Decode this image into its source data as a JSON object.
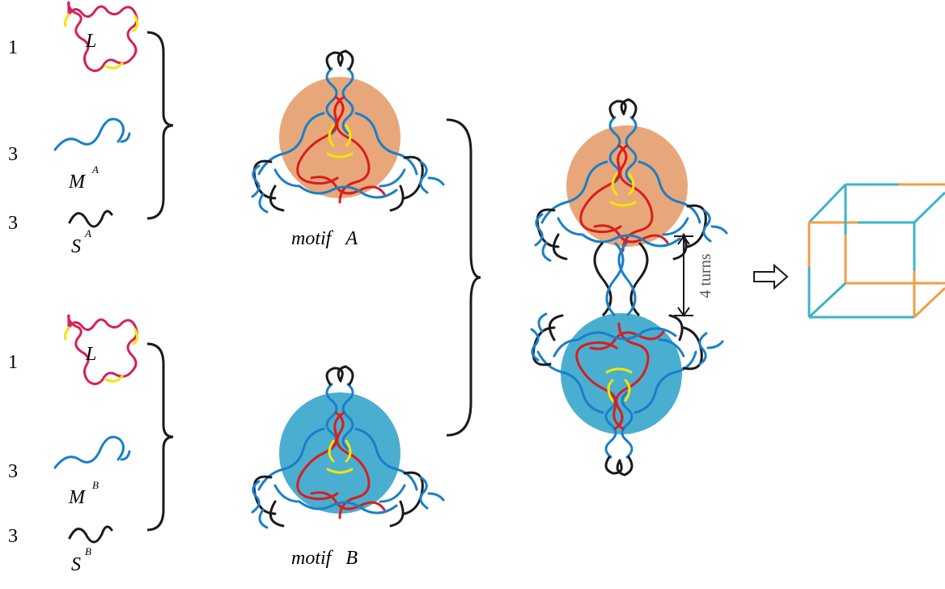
{
  "group_a": {
    "counts": [
      1,
      3,
      3
    ],
    "strands": [
      {
        "base": "L"
      },
      {
        "base": "M",
        "sup": "A"
      },
      {
        "base": "S",
        "sup": "A"
      }
    ],
    "motif": {
      "word": "motif",
      "letter": "A"
    }
  },
  "group_b": {
    "counts": [
      1,
      3,
      3
    ],
    "strands": [
      {
        "base": "L"
      },
      {
        "base": "M",
        "sup": "B"
      },
      {
        "base": "S",
        "sup": "B"
      }
    ],
    "motif": {
      "word": "motif",
      "letter": "B"
    }
  },
  "spacing": "4 turns"
}
